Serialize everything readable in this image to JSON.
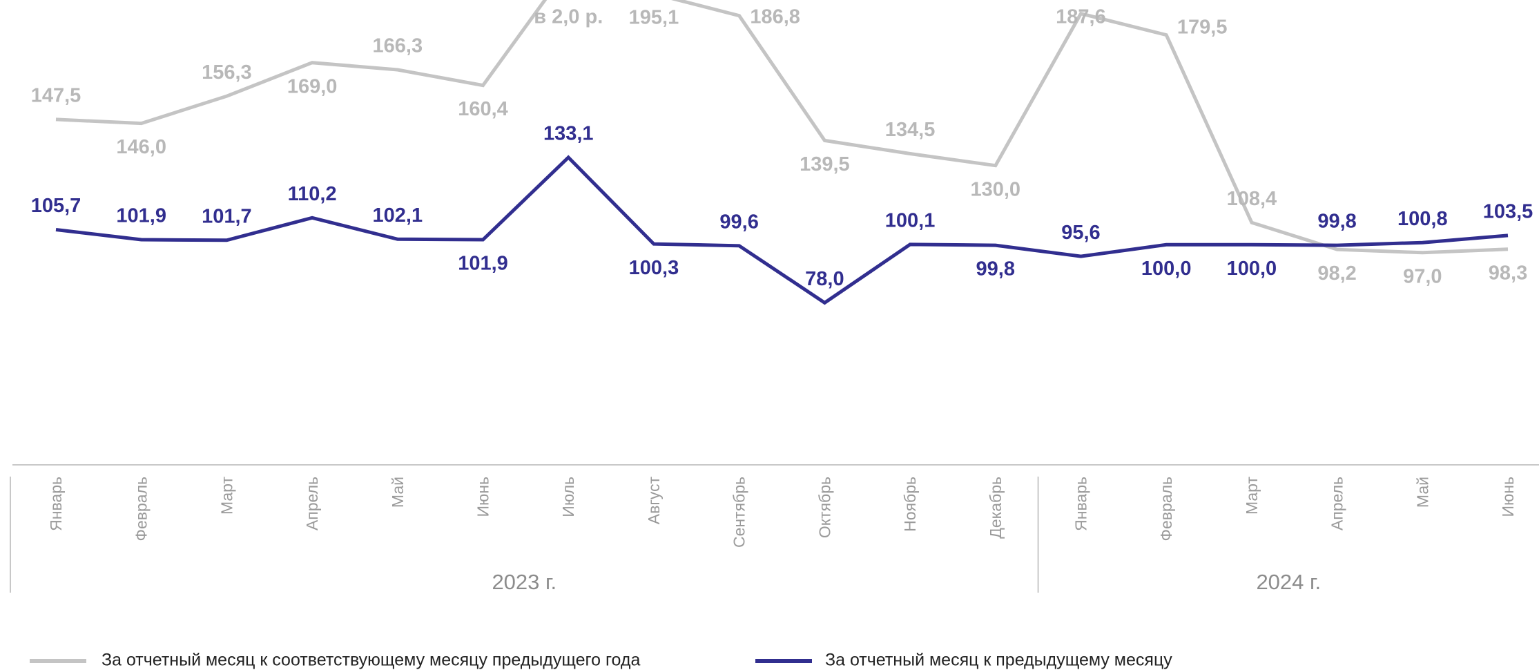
{
  "chart_data": {
    "type": "line",
    "categories": [
      "Январь",
      "Февраль",
      "Март",
      "Апрель",
      "Май",
      "Июнь",
      "Июль",
      "Август",
      "Сентябрь",
      "Октябрь",
      "Ноябрь",
      "Декабрь",
      "Январь",
      "Февраль",
      "Март",
      "Апрель",
      "Май",
      "Июнь"
    ],
    "year_groups": [
      {
        "label": "2023 г.",
        "count": 12
      },
      {
        "label": "2024 г.",
        "count": 6
      }
    ],
    "series": [
      {
        "name": "За отчетный месяц к соответствующему месяцу предыдущего года",
        "color": "#c4c4c4",
        "label_color": "#b8b8b8",
        "values": [
          147.5,
          146.0,
          156.3,
          169.0,
          166.3,
          160.4,
          205.0,
          195.1,
          186.8,
          139.5,
          134.5,
          130.0,
          187.6,
          179.5,
          108.4,
          98.2,
          97.0,
          98.3
        ],
        "labels": [
          "147,5",
          "146,0",
          "156,3",
          "169,0",
          "166,3",
          "160,4",
          "в 2,0 р.",
          "195,1",
          "186,8",
          "139,5",
          "134,5",
          "130,0",
          "187,6",
          "179,5",
          "108,4",
          "98,2",
          "97,0",
          "98,3"
        ],
        "label_pos": [
          "above",
          "below",
          "above",
          "below",
          "above",
          "below",
          "above",
          "below",
          "right",
          "below",
          "above",
          "below",
          "above",
          "right",
          "above",
          "below",
          "below",
          "below"
        ]
      },
      {
        "name": "За отчетный месяц к предыдущему месяцу",
        "color": "#312e8f",
        "label_color": "#312e8f",
        "values": [
          105.7,
          101.9,
          101.7,
          110.2,
          102.1,
          101.9,
          133.1,
          100.3,
          99.6,
          78.0,
          100.1,
          99.8,
          95.6,
          100.0,
          100.0,
          99.8,
          100.8,
          103.5
        ],
        "labels": [
          "105,7",
          "101,9",
          "101,7",
          "110,2",
          "102,1",
          "101,9",
          "133,1",
          "100,3",
          "99,6",
          "78,0",
          "100,1",
          "99,8",
          "95,6",
          "100,0",
          "100,0",
          "99,8",
          "100,8",
          "103,5"
        ],
        "label_pos": [
          "above",
          "above",
          "above",
          "above",
          "above",
          "below",
          "above",
          "below",
          "above",
          "above",
          "above",
          "below",
          "above",
          "below",
          "below",
          "above",
          "above",
          "above"
        ]
      }
    ],
    "title": "",
    "xlabel": "",
    "ylabel": "",
    "legend_position": "bottom",
    "grid": false
  }
}
